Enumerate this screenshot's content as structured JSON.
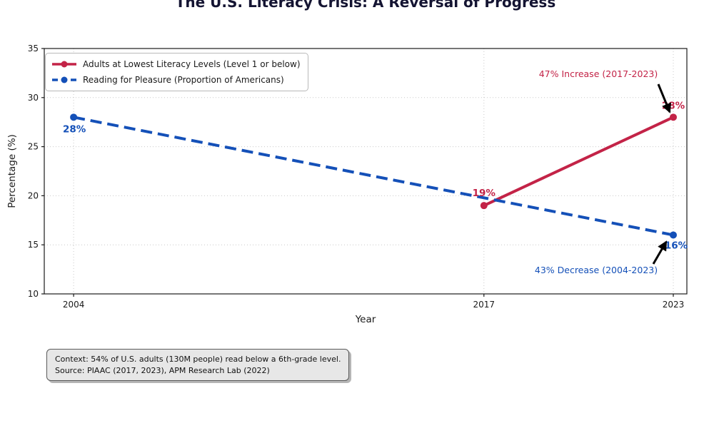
{
  "chart": {
    "title": "The U.S. Literacy Crisis: A Reversal of Progress"
  },
  "chart_data": {
    "type": "line",
    "title": "The U.S. Literacy Crisis: A Reversal of Progress",
    "xlabel": "Year",
    "ylabel": "Percentage (%)",
    "xlim": [
      2003.07,
      2023.43
    ],
    "ylim": [
      10,
      35
    ],
    "xticks": [
      2004,
      2017,
      2023
    ],
    "yticks": [
      10,
      15,
      20,
      25,
      30,
      35
    ],
    "grid": true,
    "grid_style": "dotted",
    "legend_position": "upper left",
    "series": [
      {
        "name": "Adults at Lowest Literacy Levels (Level 1 or below)",
        "color": "#C32347",
        "line_style": "solid",
        "x": [
          2017,
          2023
        ],
        "values": [
          19,
          28
        ],
        "point_labels": [
          "19%",
          "28%"
        ]
      },
      {
        "name": "Reading for Pleasure (Proportion of Americans)",
        "color": "#1450B8",
        "line_style": "dashed",
        "x": [
          2004,
          2023
        ],
        "values": [
          28,
          16
        ],
        "point_labels": [
          "28%",
          "16%"
        ]
      }
    ],
    "annotations": [
      {
        "text": "47% Increase (2017-2023)",
        "color": "#C32347",
        "target": {
          "x": 2023,
          "y": 28
        }
      },
      {
        "text": "43% Decrease (2004-2023)",
        "color": "#1450B8",
        "target": {
          "x": 2023,
          "y": 16
        }
      }
    ]
  },
  "context_box": {
    "line1": "Context: 54% of U.S. adults (130M people) read below a 6th-grade level.",
    "line2": "Source: PIAAC (2017, 2023), APM Research Lab (2022)"
  },
  "colors": {
    "literacy_red": "#C32347",
    "reading_blue": "#1450B8",
    "title_navy": "#141432",
    "grid_gray": "#c9c9c9",
    "spine_black": "#1a1a1a",
    "arrow_black": "#000000",
    "context_bg": "#e7e7e7"
  }
}
